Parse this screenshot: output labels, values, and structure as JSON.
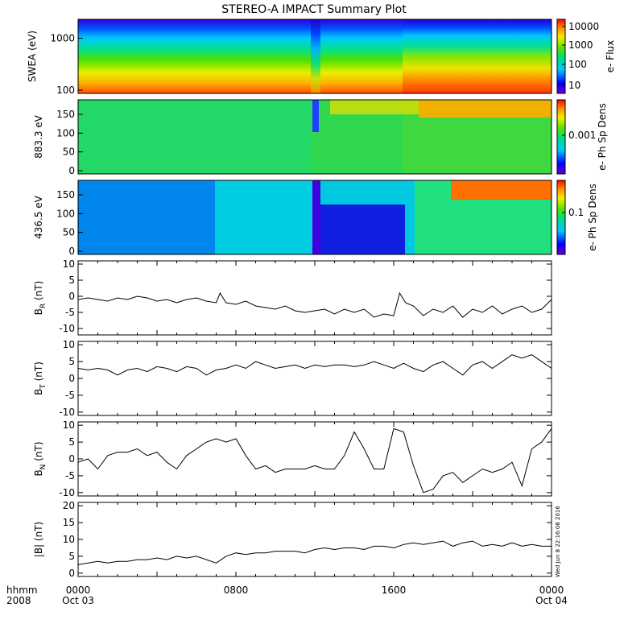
{
  "title": "STEREO-A IMPACT Summary Plot",
  "corner": {
    "time_label": "hhmm",
    "year": "2008"
  },
  "x_ticks": [
    {
      "t": 0,
      "top": "0000",
      "bottom": "Oct 03"
    },
    {
      "t": 8,
      "top": "0800",
      "bottom": ""
    },
    {
      "t": 16,
      "top": "1600",
      "bottom": ""
    },
    {
      "t": 24,
      "top": "0000",
      "bottom": "Oct 04"
    }
  ],
  "timestamp": "Wed Jun 8 22:16:08 2016",
  "colors": {
    "line": "#000000",
    "frame": "#000000"
  },
  "spectrograms": [
    {
      "ylabel": "SWEA (eV)",
      "ylim": [
        100,
        2000
      ],
      "log_y": true,
      "yticks": [
        "100",
        "1000"
      ],
      "colorbar": {
        "label": "e- Flux",
        "ticks": [
          "10",
          "100",
          "1000",
          "10000"
        ]
      }
    },
    {
      "ylabel": "883.3 eV",
      "ylim": [
        0,
        180
      ],
      "yticks": [
        "0",
        "50",
        "100",
        "150"
      ],
      "colorbar": {
        "label": "e- Ph Sp Dens",
        "ticks": [
          "0.001"
        ]
      }
    },
    {
      "ylabel": "436.5 eV",
      "ylim": [
        0,
        180
      ],
      "yticks": [
        "0",
        "50",
        "100",
        "150"
      ],
      "colorbar": {
        "label": "e- Ph Sp Dens",
        "ticks": [
          "0.1"
        ]
      }
    }
  ],
  "chart_data": [
    {
      "type": "line",
      "ylabel_main": "B",
      "ylabel_sub": "R",
      "ylabel_unit": "(nT)",
      "ylim": [
        -12,
        11
      ],
      "yticks": [
        "-10",
        "-5",
        "0",
        "5",
        "10"
      ],
      "x_hours": [
        0,
        0.5,
        1,
        1.5,
        2,
        2.5,
        3,
        3.5,
        4,
        4.5,
        5,
        5.5,
        6,
        6.5,
        7,
        7.2,
        7.5,
        8,
        8.5,
        9,
        9.5,
        10,
        10.5,
        11,
        11.5,
        12,
        12.5,
        13,
        13.5,
        14,
        14.5,
        15,
        15.5,
        16,
        16.3,
        16.6,
        17,
        17.5,
        18,
        18.5,
        19,
        19.5,
        20,
        20.5,
        21,
        21.5,
        22,
        22.5,
        23,
        23.5,
        24
      ],
      "values": [
        -1,
        -0.5,
        -1,
        -1.5,
        -0.5,
        -1,
        0,
        -0.5,
        -1.5,
        -1,
        -2,
        -1,
        -0.5,
        -1.5,
        -2,
        1,
        -2,
        -2.5,
        -1.5,
        -3,
        -3.5,
        -4,
        -3,
        -4.5,
        -5,
        -4.5,
        -4,
        -5.5,
        -4,
        -5,
        -4,
        -6.5,
        -5.5,
        -6,
        1,
        -2,
        -3,
        -6,
        -4,
        -5,
        -3,
        -6.5,
        -4,
        -5,
        -3,
        -5.5,
        -4,
        -3,
        -5,
        -4,
        -1
      ]
    },
    {
      "type": "line",
      "ylabel_main": "B",
      "ylabel_sub": "T",
      "ylabel_unit": "(nT)",
      "ylim": [
        -11,
        11
      ],
      "yticks": [
        "-10",
        "-5",
        "0",
        "5",
        "10"
      ],
      "x_hours": [
        0,
        0.5,
        1,
        1.5,
        2,
        2.5,
        3,
        3.5,
        4,
        4.5,
        5,
        5.5,
        6,
        6.5,
        7,
        7.5,
        8,
        8.5,
        9,
        9.5,
        10,
        10.5,
        11,
        11.5,
        12,
        12.5,
        13,
        13.5,
        14,
        14.5,
        15,
        15.5,
        16,
        16.5,
        17,
        17.5,
        18,
        18.5,
        19,
        19.5,
        20,
        20.5,
        21,
        21.5,
        22,
        22.5,
        23,
        23.5,
        24
      ],
      "values": [
        3,
        2.5,
        3,
        2.5,
        1,
        2.5,
        3,
        2,
        3.5,
        3,
        2,
        3.5,
        3,
        1,
        2.5,
        3,
        4,
        3,
        5,
        4,
        3,
        3.5,
        4,
        3,
        4,
        3.5,
        4,
        4,
        3.5,
        4,
        5,
        4,
        3,
        4.5,
        3,
        2,
        4,
        5,
        3,
        1,
        4,
        5,
        3,
        5,
        7,
        6,
        7,
        5,
        3
      ]
    },
    {
      "type": "line",
      "ylabel_main": "B",
      "ylabel_sub": "N",
      "ylabel_unit": "(nT)",
      "ylim": [
        -11,
        11
      ],
      "yticks": [
        "-10",
        "-5",
        "0",
        "5",
        "10"
      ],
      "x_hours": [
        0,
        0.5,
        1,
        1.5,
        2,
        2.5,
        3,
        3.5,
        4,
        4.5,
        5,
        5.5,
        6,
        6.5,
        7,
        7.5,
        8,
        8.5,
        9,
        9.5,
        10,
        10.5,
        11,
        11.5,
        12,
        12.5,
        13,
        13.5,
        14,
        14.5,
        15,
        15.5,
        16,
        16.5,
        17,
        17.5,
        18,
        18.5,
        19,
        19.5,
        20,
        20.5,
        21,
        21.5,
        22,
        22.5,
        23,
        23.5,
        24
      ],
      "values": [
        -1,
        0,
        -3,
        1,
        2,
        2,
        3,
        1,
        2,
        -1,
        -3,
        1,
        3,
        5,
        6,
        5,
        6,
        1,
        -3,
        -2,
        -4,
        -3,
        -3,
        -3,
        -2,
        -3,
        -3,
        1,
        8,
        3,
        -3,
        -3,
        9,
        8,
        -2,
        -10,
        -9,
        -5,
        -4,
        -7,
        -5,
        -3,
        -4,
        -3,
        -1,
        -8,
        3,
        5,
        9
      ]
    },
    {
      "type": "line",
      "ylabel_main": "|B|",
      "ylabel_sub": "",
      "ylabel_unit": "(nT)",
      "ylim": [
        -1,
        21
      ],
      "yticks": [
        "0",
        "5",
        "10",
        "15",
        "20"
      ],
      "x_hours": [
        0,
        0.5,
        1,
        1.5,
        2,
        2.5,
        3,
        3.5,
        4,
        4.5,
        5,
        5.5,
        6,
        6.5,
        7,
        7.5,
        8,
        8.5,
        9,
        9.5,
        10,
        10.5,
        11,
        11.5,
        12,
        12.5,
        13,
        13.5,
        14,
        14.5,
        15,
        15.5,
        16,
        16.5,
        17,
        17.5,
        18,
        18.5,
        19,
        19.5,
        20,
        20.5,
        21,
        21.5,
        22,
        22.5,
        23,
        23.5,
        24
      ],
      "values": [
        2.5,
        3,
        3.5,
        3,
        3.5,
        3.5,
        4,
        4,
        4.5,
        4,
        5,
        4.5,
        5,
        4,
        3,
        5,
        6,
        5.5,
        6,
        6,
        6.5,
        6.5,
        6.5,
        6,
        7,
        7.5,
        7,
        7.5,
        7.5,
        7,
        8,
        8,
        7.5,
        8.5,
        9,
        8.5,
        9,
        9.5,
        8,
        9,
        9.5,
        8,
        8.5,
        8,
        9,
        8,
        8.5,
        8,
        8
      ]
    }
  ]
}
